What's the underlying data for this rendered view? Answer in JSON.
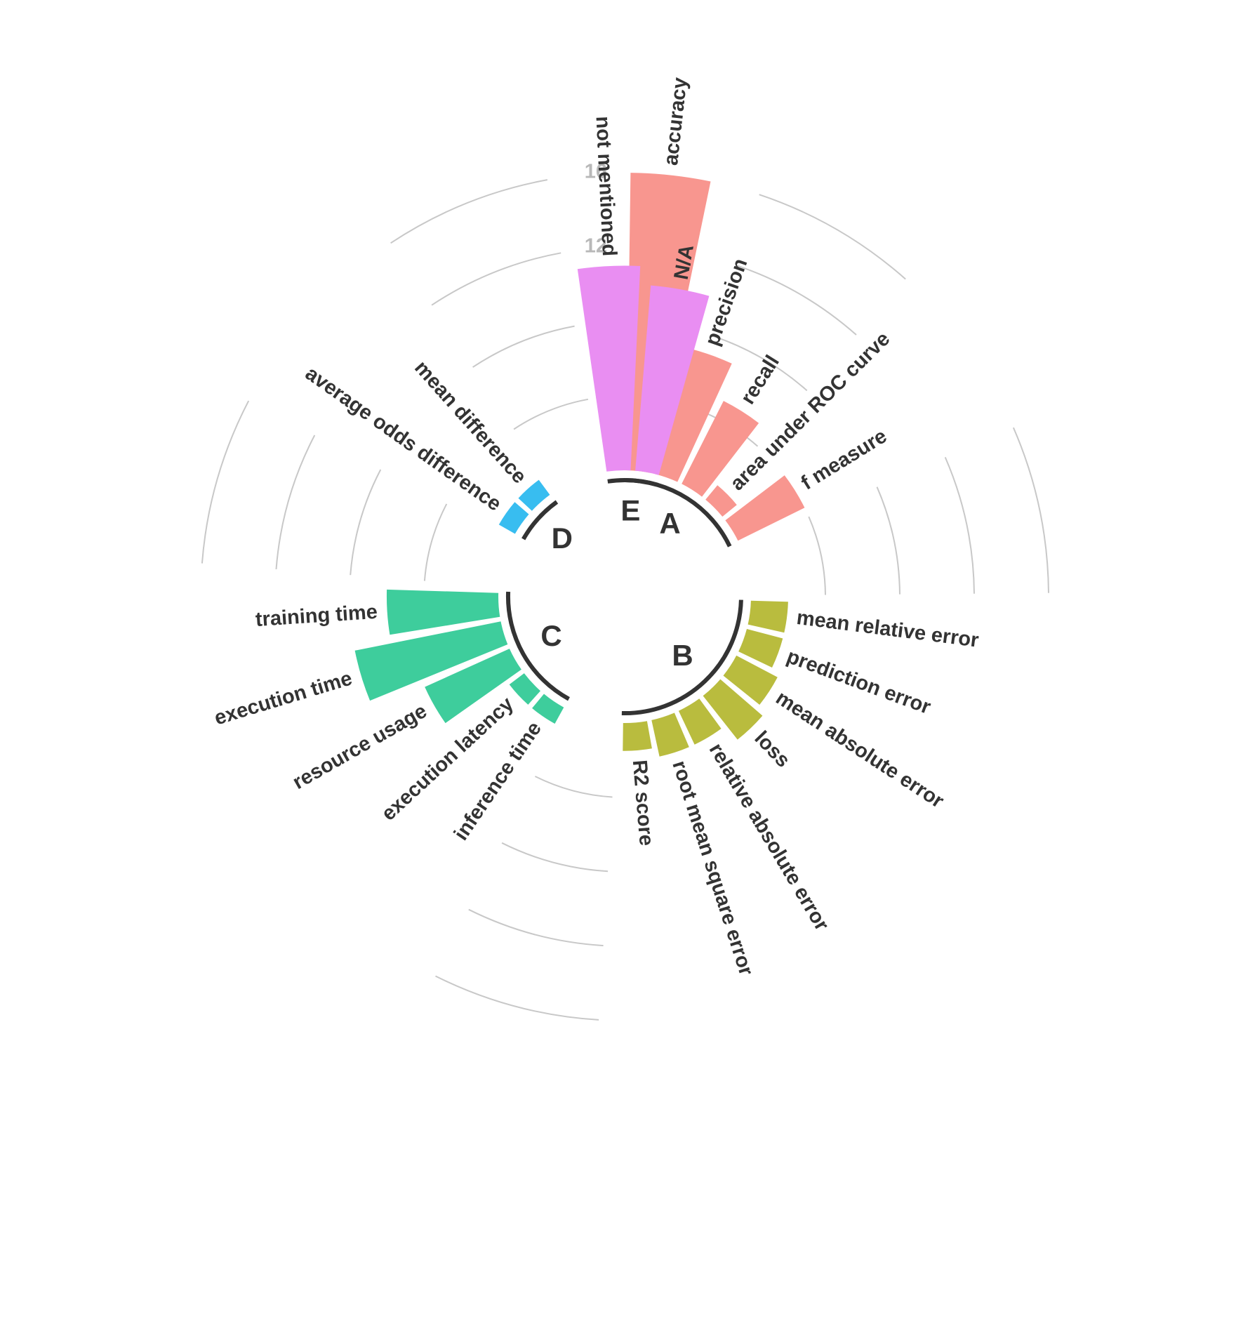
{
  "chart_data": {
    "type": "circular-bar",
    "radial_ticks": [
      "4",
      "8",
      "12",
      "16"
    ],
    "groups": [
      {
        "label": "A",
        "color": "#f8968f",
        "bars": [
          {
            "label": "accuracy",
            "value": 16
          },
          {
            "label": "precision",
            "value": 7
          },
          {
            "label": "recall",
            "value": 5
          },
          {
            "label": "area under ROC curve",
            "value": 1
          },
          {
            "label": "f measure",
            "value": 4
          }
        ]
      },
      {
        "label": "B",
        "color": "#b9bc3e",
        "bars": [
          {
            "label": "mean relative error",
            "value": 2
          },
          {
            "label": "prediction error",
            "value": 2
          },
          {
            "label": "mean absolute error",
            "value": 2.5
          },
          {
            "label": "loss",
            "value": 3
          },
          {
            "label": "relative absolute error",
            "value": 2
          },
          {
            "label": "root mean square error",
            "value": 2
          },
          {
            "label": "R2 score",
            "value": 1.5
          }
        ]
      },
      {
        "label": "C",
        "color": "#3ecd9c",
        "bars": [
          {
            "label": "inference time",
            "value": 1
          },
          {
            "label": "execution latency",
            "value": 1
          },
          {
            "label": "resource usage",
            "value": 5
          },
          {
            "label": "execution time",
            "value": 8
          },
          {
            "label": "training time",
            "value": 6
          }
        ]
      },
      {
        "label": "D",
        "color": "#38bdf0",
        "bars": [
          {
            "label": "average odds difference",
            "value": 1
          },
          {
            "label": "mean difference",
            "value": 1
          }
        ]
      },
      {
        "label": "E",
        "color": "#e98ef2",
        "bars": [
          {
            "label": "not mentioned",
            "value": 11
          },
          {
            "label": "N/A",
            "value": 10
          }
        ]
      }
    ]
  }
}
